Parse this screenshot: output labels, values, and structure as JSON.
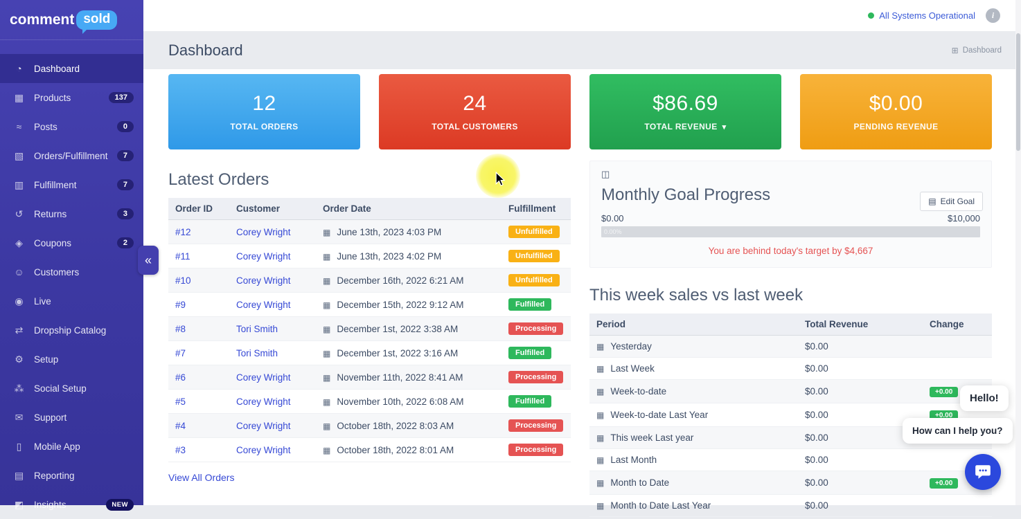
{
  "brand": {
    "part1": "comment",
    "part2": "sold"
  },
  "topbar": {
    "status_text": "All Systems Operational"
  },
  "header": {
    "title": "Dashboard",
    "breadcrumb": "Dashboard"
  },
  "sidebar": {
    "items": [
      {
        "id": "dashboard",
        "icon": "dashboard-icon",
        "label": "Dashboard",
        "badge": null,
        "active": true
      },
      {
        "id": "products",
        "icon": "products-icon",
        "label": "Products",
        "badge": "137",
        "active": false
      },
      {
        "id": "posts",
        "icon": "posts-icon",
        "label": "Posts",
        "badge": "0",
        "active": false
      },
      {
        "id": "orders-fulfillment",
        "icon": "orders-icon",
        "label": "Orders/Fulfillment",
        "badge": "7",
        "active": false
      },
      {
        "id": "fulfillment",
        "icon": "fulfillment-icon",
        "label": "Fulfillment",
        "badge": "7",
        "active": false
      },
      {
        "id": "returns",
        "icon": "returns-icon",
        "label": "Returns",
        "badge": "3",
        "active": false
      },
      {
        "id": "coupons",
        "icon": "coupons-icon",
        "label": "Coupons",
        "badge": "2",
        "active": false
      },
      {
        "id": "customers",
        "icon": "customers-icon",
        "label": "Customers",
        "badge": null,
        "active": false
      },
      {
        "id": "live",
        "icon": "live-icon",
        "label": "Live",
        "badge": null,
        "active": false
      },
      {
        "id": "dropship-catalog",
        "icon": "dropship-icon",
        "label": "Dropship Catalog",
        "badge": null,
        "active": false
      },
      {
        "id": "setup",
        "icon": "setup-icon",
        "label": "Setup",
        "badge": null,
        "active": false
      },
      {
        "id": "social-setup",
        "icon": "social-icon",
        "label": "Social Setup",
        "badge": null,
        "active": false
      },
      {
        "id": "support",
        "icon": "support-icon",
        "label": "Support",
        "badge": null,
        "active": false
      },
      {
        "id": "mobile-app",
        "icon": "mobile-icon",
        "label": "Mobile App",
        "badge": null,
        "active": false
      },
      {
        "id": "reporting",
        "icon": "reporting-icon",
        "label": "Reporting",
        "badge": null,
        "active": false
      },
      {
        "id": "insights",
        "icon": "insights-icon",
        "label": "Insights",
        "badge": "NEW",
        "active": false
      }
    ]
  },
  "stats": [
    {
      "value": "12",
      "label": "TOTAL ORDERS",
      "color": "#3ea2ec"
    },
    {
      "value": "24",
      "label": "TOTAL CUSTOMERS",
      "color": "#e1482f"
    },
    {
      "value": "$86.69",
      "label": "TOTAL REVENUE",
      "color": "#2eb85c"
    },
    {
      "value": "$0.00",
      "label": "PENDING REVENUE",
      "color": "#f3a81f"
    }
  ],
  "latest_orders": {
    "title": "Latest Orders",
    "columns": [
      "Order ID",
      "Customer",
      "Order Date",
      "Fulfillment"
    ],
    "rows": [
      {
        "id": "#12",
        "customer": "Corey Wright",
        "date": "June 13th, 2023 4:03 PM",
        "status": "Unfulfilled"
      },
      {
        "id": "#11",
        "customer": "Corey Wright",
        "date": "June 13th, 2023 4:02 PM",
        "status": "Unfulfilled"
      },
      {
        "id": "#10",
        "customer": "Corey Wright",
        "date": "December 16th, 2022 6:21 AM",
        "status": "Unfulfilled"
      },
      {
        "id": "#9",
        "customer": "Corey Wright",
        "date": "December 15th, 2022 9:12 AM",
        "status": "Fulfilled"
      },
      {
        "id": "#8",
        "customer": "Tori Smith",
        "date": "December 1st, 2022 3:38 AM",
        "status": "Processing"
      },
      {
        "id": "#7",
        "customer": "Tori Smith",
        "date": "December 1st, 2022 3:16 AM",
        "status": "Fulfilled"
      },
      {
        "id": "#6",
        "customer": "Corey Wright",
        "date": "November 11th, 2022 8:41 AM",
        "status": "Processing"
      },
      {
        "id": "#5",
        "customer": "Corey Wright",
        "date": "November 10th, 2022 6:08 AM",
        "status": "Fulfilled"
      },
      {
        "id": "#4",
        "customer": "Corey Wright",
        "date": "October 18th, 2022 8:03 AM",
        "status": "Processing"
      },
      {
        "id": "#3",
        "customer": "Corey Wright",
        "date": "October 18th, 2022 8:01 AM",
        "status": "Processing"
      }
    ],
    "footer_link": "View All Orders"
  },
  "goal": {
    "title": "Monthly Goal Progress",
    "edit_button": "Edit Goal",
    "min": "$0.00",
    "max": "$10,000",
    "percent": "0.00%",
    "warning": "You are behind today's target by $4,667"
  },
  "week": {
    "title": "This week sales vs last week",
    "columns": [
      "Period",
      "Total Revenue",
      "Change"
    ],
    "rows": [
      {
        "period": "Yesterday",
        "revenue": "$0.00",
        "change": null
      },
      {
        "period": "Last Week",
        "revenue": "$0.00",
        "change": null
      },
      {
        "period": "Week-to-date",
        "revenue": "$0.00",
        "change": "+0.00"
      },
      {
        "period": "Week-to-date Last Year",
        "revenue": "$0.00",
        "change": "+0.00"
      },
      {
        "period": "This week Last year",
        "revenue": "$0.00",
        "change": null
      },
      {
        "period": "Last Month",
        "revenue": "$0.00",
        "change": null
      },
      {
        "period": "Month to Date",
        "revenue": "$0.00",
        "change": "+0.00"
      },
      {
        "period": "Month to Date Last Year",
        "revenue": "$0.00",
        "change": null
      }
    ]
  },
  "chat": {
    "greeting": "Hello!",
    "question": "How can I help you?"
  },
  "colors": {
    "sidebar": "#3e3aa3",
    "link": "#3548d5",
    "status_unfulfilled": "#f9b115",
    "status_fulfilled": "#2eb85c",
    "status_processing": "#e55353",
    "warning_text": "#e55353",
    "operational_green": "#2eb85c",
    "chat_button": "#2b48dd",
    "brand_bubble": "#47a9f5"
  }
}
